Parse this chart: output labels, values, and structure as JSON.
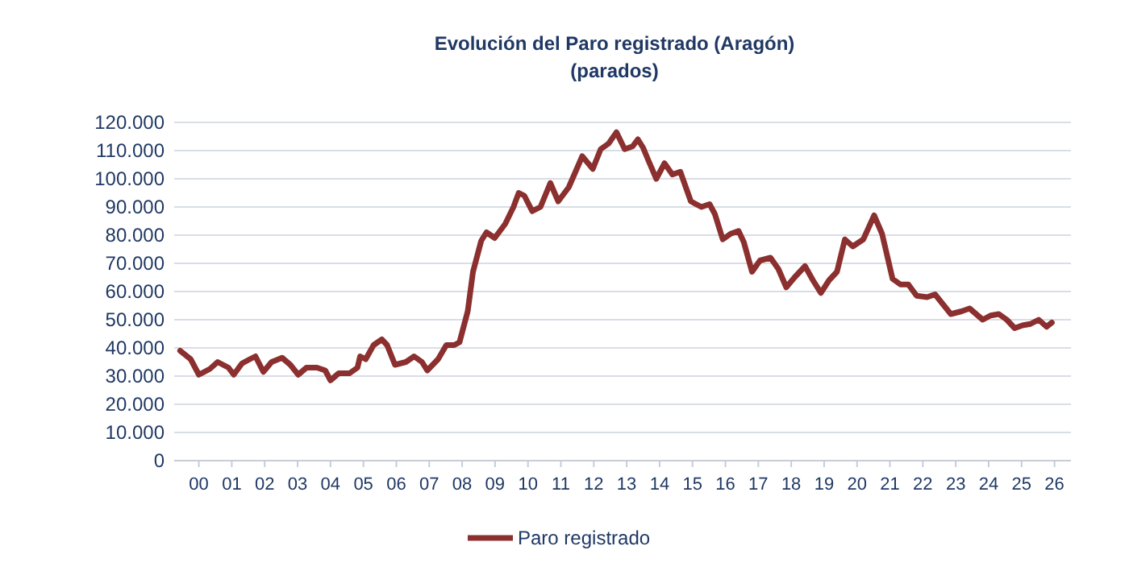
{
  "chart_data": {
    "type": "line",
    "title": "Evolución del Paro registrado (Aragón)",
    "subtitle": "(parados)",
    "xlim": [
      -0.75,
      26.5
    ],
    "xticks": [
      {
        "value": 0,
        "label": "00"
      },
      {
        "value": 1,
        "label": "01"
      },
      {
        "value": 2,
        "label": "02"
      },
      {
        "value": 3,
        "label": "03"
      },
      {
        "value": 4,
        "label": "04"
      },
      {
        "value": 5,
        "label": "05"
      },
      {
        "value": 6,
        "label": "06"
      },
      {
        "value": 7,
        "label": "07"
      },
      {
        "value": 8,
        "label": "08"
      },
      {
        "value": 9,
        "label": "09"
      },
      {
        "value": 10,
        "label": "10"
      },
      {
        "value": 11,
        "label": "11"
      },
      {
        "value": 12,
        "label": "12"
      },
      {
        "value": 13,
        "label": "13"
      },
      {
        "value": 14,
        "label": "14"
      },
      {
        "value": 15,
        "label": "15"
      },
      {
        "value": 16,
        "label": "16"
      },
      {
        "value": 17,
        "label": "17"
      },
      {
        "value": 18,
        "label": "18"
      },
      {
        "value": 19,
        "label": "19"
      },
      {
        "value": 20,
        "label": "20"
      },
      {
        "value": 21,
        "label": "21"
      },
      {
        "value": 22,
        "label": "22"
      },
      {
        "value": 23,
        "label": "23"
      },
      {
        "value": 24,
        "label": "24"
      },
      {
        "value": 25,
        "label": "25"
      },
      {
        "value": 26,
        "label": "26"
      }
    ],
    "ylim": [
      0,
      120000
    ],
    "yticks": [
      0,
      {
        "value": 10000,
        "label": "10.000"
      },
      {
        "value": 20000,
        "label": "20.000"
      },
      {
        "value": 30000,
        "label": "30.000"
      },
      {
        "value": 40000,
        "label": "40.000"
      },
      {
        "value": 50000,
        "label": "50.000"
      },
      {
        "value": 60000,
        "label": "60.000"
      },
      {
        "value": 70000,
        "label": "70.000"
      },
      {
        "value": 80000,
        "label": "80.000"
      },
      {
        "value": 90000,
        "label": "90.000"
      },
      {
        "value": 100000,
        "label": "100.000"
      },
      {
        "value": 110000,
        "label": "110.000"
      },
      {
        "value": 120000,
        "label": "120.000"
      }
    ],
    "grid": "y",
    "legend": "bottom",
    "marker": "none",
    "line_style": "solid",
    "series": [
      {
        "name": "Paro registrado",
        "color": "#8b2f2f",
        "x": [
          -0.57,
          -0.25,
          0,
          0.33,
          0.57,
          0.9,
          1.06,
          1.31,
          1.55,
          1.72,
          1.96,
          2.21,
          2.53,
          2.78,
          3.02,
          3.27,
          3.59,
          3.84,
          4,
          4.25,
          4.58,
          4.82,
          4.9,
          5.07,
          5.31,
          5.56,
          5.72,
          5.96,
          6.29,
          6.54,
          6.78,
          6.94,
          7.27,
          7.52,
          7.76,
          7.92,
          8.17,
          8.33,
          8.58,
          8.74,
          8.99,
          9.31,
          9.56,
          9.72,
          9.89,
          10.13,
          10.38,
          10.68,
          10.92,
          11.24,
          11.65,
          11.97,
          12.21,
          12.45,
          12.69,
          12.94,
          13.18,
          13.34,
          13.5,
          13.66,
          13.9,
          14.15,
          14.39,
          14.63,
          14.95,
          15.27,
          15.52,
          15.68,
          15.92,
          16.16,
          16.4,
          16.56,
          16.81,
          17.05,
          17.37,
          17.61,
          17.85,
          18.1,
          18.42,
          18.66,
          18.9,
          19.15,
          19.39,
          19.63,
          19.87,
          20.19,
          20.52,
          20.76,
          21.08,
          21.32,
          21.56,
          21.81,
          22.13,
          22.37,
          22.61,
          22.85,
          23.18,
          23.42,
          23.82,
          24.06,
          24.31,
          24.55,
          24.79,
          25.03,
          25.27,
          25.52,
          25.76,
          25.92
        ],
        "values": [
          39000,
          36000,
          30500,
          32500,
          35000,
          33000,
          30500,
          34500,
          36000,
          37000,
          31500,
          35000,
          36500,
          34000,
          30500,
          33000,
          33000,
          32000,
          28500,
          31000,
          31000,
          33000,
          37000,
          36000,
          41000,
          43000,
          41000,
          34000,
          35000,
          37000,
          35000,
          32000,
          36000,
          41000,
          41000,
          42000,
          53000,
          67000,
          78000,
          81000,
          79000,
          84000,
          90000,
          95000,
          94000,
          88500,
          90000,
          98500,
          92000,
          97000,
          108000,
          103500,
          110500,
          112500,
          116500,
          110500,
          111500,
          114000,
          111000,
          106500,
          100000,
          105500,
          101500,
          102500,
          92000,
          90000,
          91000,
          87500,
          78500,
          80500,
          81500,
          77500,
          67000,
          71000,
          72000,
          68000,
          61500,
          65000,
          69000,
          64000,
          59500,
          64000,
          67000,
          78500,
          76000,
          78500,
          87000,
          80500,
          64500,
          62500,
          62500,
          58500,
          58000,
          59000,
          55500,
          52000,
          53000,
          54000,
          50000,
          51500,
          52000,
          50000,
          47000,
          48000,
          48500,
          50000,
          47500,
          49000
        ]
      }
    ]
  }
}
